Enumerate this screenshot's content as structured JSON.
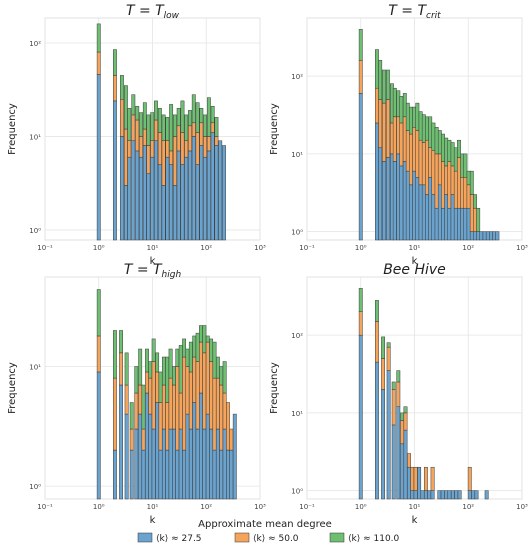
{
  "legend": {
    "title": "Approximate mean  degree",
    "items": [
      {
        "label": "⟨k⟩ ≈ 27.5",
        "color": "#6ba3cf"
      },
      {
        "label": "⟨k⟩ ≈ 50.0",
        "color": "#f5a45c"
      },
      {
        "label": "⟨k⟩ ≈ 110.0",
        "color": "#6fbf73"
      }
    ]
  },
  "chart_data": [
    {
      "type": "bar",
      "stacked": true,
      "title": "T = T_low",
      "xlabel": "k",
      "ylabel": "Frequency",
      "x_scale": "log",
      "y_scale": "log",
      "xlim": [
        0.1,
        1000
      ],
      "ylim": [
        0.78,
        185
      ],
      "x_ticks": [
        "10⁻¹",
        "10⁰",
        "10¹",
        "10²",
        "10³"
      ],
      "y_ticks": [
        "10⁰",
        "10¹",
        "10²"
      ],
      "grid": true,
      "series_names": [
        "⟨k⟩ ≈ 27.5",
        "⟨k⟩ ≈ 50.0",
        "⟨k⟩ ≈ 110.0"
      ],
      "bins": [
        {
          "k": 1.0,
          "totals": [
            46,
            80,
            160
          ]
        },
        {
          "k": 2.0,
          "totals": [
            24,
            45,
            85
          ]
        },
        {
          "k": 2.7,
          "totals": [
            10,
            25,
            45
          ]
        },
        {
          "k": 3.2,
          "totals": [
            3,
            12,
            35
          ]
        },
        {
          "k": 3.7,
          "totals": [
            6,
            9,
            20
          ]
        },
        {
          "k": 4.4,
          "totals": [
            9,
            17,
            28
          ]
        },
        {
          "k": 5.2,
          "totals": [
            7,
            15,
            21
          ]
        },
        {
          "k": 6.1,
          "totals": [
            6,
            10,
            18
          ]
        },
        {
          "k": 7.2,
          "totals": [
            8,
            12,
            23
          ]
        },
        {
          "k": 8.4,
          "totals": [
            4,
            8,
            17
          ]
        },
        {
          "k": 9.9,
          "totals": [
            6,
            9,
            18
          ]
        },
        {
          "k": 11.6,
          "totals": [
            9,
            15,
            24
          ]
        },
        {
          "k": 13.7,
          "totals": [
            5,
            11,
            20
          ]
        },
        {
          "k": 16.1,
          "totals": [
            3,
            9,
            17
          ]
        },
        {
          "k": 18.9,
          "totals": [
            6,
            9,
            16
          ]
        },
        {
          "k": 22.2,
          "totals": [
            5,
            7,
            22
          ]
        },
        {
          "k": 26.1,
          "totals": [
            3,
            10,
            17
          ]
        },
        {
          "k": 30.7,
          "totals": [
            7,
            13,
            20
          ]
        },
        {
          "k": 36.1,
          "totals": [
            5,
            11,
            24
          ]
        },
        {
          "k": 42.4,
          "totals": [
            6,
            9,
            17
          ]
        },
        {
          "k": 49.8,
          "totals": [
            7,
            13,
            19
          ]
        },
        {
          "k": 58.6,
          "totals": [
            10,
            14,
            28
          ]
        },
        {
          "k": 68.9,
          "totals": [
            5,
            11,
            23
          ]
        },
        {
          "k": 81.0,
          "totals": [
            8,
            14,
            20
          ]
        },
        {
          "k": 95.2,
          "totals": [
            6,
            10,
            17
          ]
        },
        {
          "k": 111.9,
          "totals": [
            7,
            10,
            26
          ]
        },
        {
          "k": 131.6,
          "totals": [
            11,
            14,
            21
          ]
        },
        {
          "k": 154.7,
          "totals": [
            8,
            10,
            16
          ]
        },
        {
          "k": 181.9,
          "totals": [
            9,
            9,
            9
          ]
        },
        {
          "k": 213.8,
          "totals": [
            8,
            8,
            8
          ]
        }
      ]
    },
    {
      "type": "bar",
      "stacked": true,
      "title": "T = T_crit",
      "xlabel": "k",
      "ylabel": "Frequency",
      "x_scale": "log",
      "y_scale": "log",
      "xlim": [
        0.1,
        1000
      ],
      "ylim": [
        0.78,
        560
      ],
      "x_ticks": [
        "10⁻¹",
        "10⁰",
        "10¹",
        "10²",
        "10³"
      ],
      "y_ticks": [
        "10⁰",
        "10¹",
        "10²"
      ],
      "grid": true,
      "series_names": [
        "⟨k⟩ ≈ 27.5",
        "⟨k⟩ ≈ 50.0",
        "⟨k⟩ ≈ 110.0"
      ],
      "bins": [
        {
          "k": 1.0,
          "totals": [
            60,
            160,
            400
          ]
        },
        {
          "k": 2.0,
          "totals": [
            25,
            70,
            220
          ]
        },
        {
          "k": 2.3,
          "totals": [
            12,
            50,
            160
          ]
        },
        {
          "k": 2.7,
          "totals": [
            8,
            45,
            120
          ]
        },
        {
          "k": 3.2,
          "totals": [
            9,
            50,
            120
          ]
        },
        {
          "k": 3.8,
          "totals": [
            10,
            25,
            80
          ]
        },
        {
          "k": 4.3,
          "totals": [
            8,
            30,
            70
          ]
        },
        {
          "k": 5.0,
          "totals": [
            10,
            30,
            65
          ]
        },
        {
          "k": 5.7,
          "totals": [
            7,
            25,
            55
          ]
        },
        {
          "k": 6.6,
          "totals": [
            8,
            30,
            60
          ]
        },
        {
          "k": 7.5,
          "totals": [
            6,
            20,
            45
          ]
        },
        {
          "k": 8.6,
          "totals": [
            4,
            18,
            40
          ]
        },
        {
          "k": 9.9,
          "totals": [
            6,
            22,
            40
          ]
        },
        {
          "k": 11.3,
          "totals": [
            5,
            20,
            45
          ]
        },
        {
          "k": 13.0,
          "totals": [
            4,
            15,
            35
          ]
        },
        {
          "k": 14.9,
          "totals": [
            4,
            14,
            32
          ]
        },
        {
          "k": 17.1,
          "totals": [
            3,
            15,
            30
          ]
        },
        {
          "k": 19.6,
          "totals": [
            5,
            12,
            30
          ]
        },
        {
          "k": 22.5,
          "totals": [
            3,
            11,
            25
          ]
        },
        {
          "k": 25.8,
          "totals": [
            2,
            10,
            22
          ]
        },
        {
          "k": 29.6,
          "totals": [
            4,
            10,
            20
          ]
        },
        {
          "k": 33.9,
          "totals": [
            2,
            8,
            18
          ]
        },
        {
          "k": 38.9,
          "totals": [
            3,
            7,
            16
          ]
        },
        {
          "k": 44.6,
          "totals": [
            2,
            8,
            15
          ]
        },
        {
          "k": 51.2,
          "totals": [
            3,
            7,
            14
          ]
        },
        {
          "k": 58.7,
          "totals": [
            2,
            6,
            12
          ]
        },
        {
          "k": 67.3,
          "totals": [
            2,
            9,
            15
          ]
        },
        {
          "k": 77.2,
          "totals": [
            2,
            5,
            10
          ]
        },
        {
          "k": 88.5,
          "totals": [
            2,
            5,
            10
          ]
        },
        {
          "k": 101.5,
          "totals": [
            2,
            4,
            6
          ]
        },
        {
          "k": 116.4,
          "totals": [
            1,
            3,
            6
          ]
        },
        {
          "k": 133.5,
          "totals": [
            1,
            2,
            3
          ]
        },
        {
          "k": 153.1,
          "totals": [
            1,
            1,
            2
          ]
        },
        {
          "k": 175.6,
          "totals": [
            1,
            1,
            1
          ]
        },
        {
          "k": 201.4,
          "totals": [
            1,
            1,
            1
          ]
        },
        {
          "k": 231.0,
          "totals": [
            1,
            1,
            1
          ]
        },
        {
          "k": 264.9,
          "totals": [
            1,
            1,
            1
          ]
        },
        {
          "k": 303.8,
          "totals": [
            1,
            1,
            1
          ]
        },
        {
          "k": 348.4,
          "totals": [
            1,
            1,
            1
          ]
        }
      ]
    },
    {
      "type": "bar",
      "stacked": true,
      "title": "T = T_high",
      "xlabel": "k",
      "ylabel": "Frequency",
      "x_scale": "log",
      "y_scale": "log",
      "xlim": [
        0.1,
        1000
      ],
      "ylim": [
        0.78,
        56
      ],
      "x_ticks": [
        "10⁻¹",
        "10⁰",
        "10¹",
        "10²",
        "10³"
      ],
      "y_ticks": [
        "10⁰",
        "10¹"
      ],
      "grid": true,
      "series_names": [
        "⟨k⟩ ≈ 27.5",
        "⟨k⟩ ≈ 50.0",
        "⟨k⟩ ≈ 110.0"
      ],
      "bins": [
        {
          "k": 1.0,
          "totals": [
            9,
            18,
            44
          ]
        },
        {
          "k": 2.0,
          "totals": [
            2,
            8,
            20
          ]
        },
        {
          "k": 2.6,
          "totals": [
            7,
            13,
            20
          ]
        },
        {
          "k": 3.3,
          "totals": [
            4,
            7,
            13
          ]
        },
        {
          "k": 4.1,
          "totals": [
            2,
            3,
            5
          ]
        },
        {
          "k": 5.0,
          "totals": [
            3,
            6,
            10
          ]
        },
        {
          "k": 5.9,
          "totals": [
            4,
            7,
            14
          ]
        },
        {
          "k": 6.8,
          "totals": [
            2,
            3,
            7
          ]
        },
        {
          "k": 7.9,
          "totals": [
            6,
            9,
            14
          ]
        },
        {
          "k": 9.1,
          "totals": [
            4,
            8,
            11
          ]
        },
        {
          "k": 10.5,
          "totals": [
            3,
            11,
            17
          ]
        },
        {
          "k": 12.2,
          "totals": [
            5,
            9,
            13
          ]
        },
        {
          "k": 14.1,
          "totals": [
            2,
            5,
            9
          ]
        },
        {
          "k": 16.3,
          "totals": [
            3,
            7,
            12
          ]
        },
        {
          "k": 18.8,
          "totals": [
            2,
            5,
            12
          ]
        },
        {
          "k": 21.7,
          "totals": [
            3,
            8,
            14
          ]
        },
        {
          "k": 25.1,
          "totals": [
            3,
            7,
            10
          ]
        },
        {
          "k": 29.0,
          "totals": [
            2,
            10,
            14
          ]
        },
        {
          "k": 33.5,
          "totals": [
            3,
            6,
            15
          ]
        },
        {
          "k": 38.7,
          "totals": [
            2,
            12,
            17
          ]
        },
        {
          "k": 44.7,
          "totals": [
            4,
            10,
            14
          ]
        },
        {
          "k": 51.7,
          "totals": [
            3,
            9,
            16
          ]
        },
        {
          "k": 59.8,
          "totals": [
            5,
            12,
            18
          ]
        },
        {
          "k": 69.1,
          "totals": [
            3,
            11,
            19
          ]
        },
        {
          "k": 79.8,
          "totals": [
            6,
            16,
            22
          ]
        },
        {
          "k": 92.3,
          "totals": [
            3,
            13,
            22
          ]
        },
        {
          "k": 106.6,
          "totals": [
            4,
            16,
            18
          ]
        },
        {
          "k": 123.2,
          "totals": [
            3,
            11,
            17
          ]
        },
        {
          "k": 142.4,
          "totals": [
            2,
            8,
            16
          ]
        },
        {
          "k": 164.6,
          "totals": [
            3,
            8,
            12
          ]
        },
        {
          "k": 190.2,
          "totals": [
            2,
            7,
            10
          ]
        },
        {
          "k": 219.8,
          "totals": [
            3,
            6,
            11
          ]
        },
        {
          "k": 254.1,
          "totals": [
            2,
            5,
            5
          ]
        },
        {
          "k": 293.6,
          "totals": [
            2,
            3,
            3
          ]
        },
        {
          "k": 339.4,
          "totals": [
            4,
            4,
            4
          ]
        }
      ]
    },
    {
      "type": "bar",
      "stacked": true,
      "title": "Bee Hive",
      "xlabel": "k",
      "ylabel": "Frequency",
      "x_scale": "log",
      "y_scale": "log",
      "xlim": [
        0.1,
        1000
      ],
      "ylim": [
        0.78,
        560
      ],
      "x_ticks": [
        "10⁻¹",
        "10⁰",
        "10¹",
        "10²",
        "10³"
      ],
      "y_ticks": [
        "10⁰",
        "10¹",
        "10²"
      ],
      "grid": true,
      "series_names": [
        "⟨k⟩ ≈ 27.5",
        "⟨k⟩ ≈ 50.0",
        "⟨k⟩ ≈ 110.0"
      ],
      "bins": [
        {
          "k": 1.0,
          "totals": [
            100,
            200,
            400
          ]
        },
        {
          "k": 2.0,
          "totals": [
            45,
            150,
            280
          ]
        },
        {
          "k": 2.6,
          "totals": [
            20,
            50,
            95
          ]
        },
        {
          "k": 3.3,
          "totals": [
            35,
            70,
            80
          ]
        },
        {
          "k": 4.1,
          "totals": [
            7,
            20,
            25
          ]
        },
        {
          "k": 5.0,
          "totals": [
            12,
            25,
            35
          ]
        },
        {
          "k": 5.9,
          "totals": [
            4,
            8,
            10
          ]
        },
        {
          "k": 6.8,
          "totals": [
            6,
            10,
            12
          ]
        },
        {
          "k": 7.9,
          "totals": [
            2,
            3,
            3
          ]
        },
        {
          "k": 9.1,
          "totals": [
            1,
            2,
            2
          ]
        },
        {
          "k": 10.5,
          "totals": [
            1,
            2,
            2
          ]
        },
        {
          "k": 12.2,
          "totals": [
            2,
            2,
            2
          ]
        },
        {
          "k": 14.1,
          "totals": [
            1,
            1,
            1
          ]
        },
        {
          "k": 16.3,
          "totals": [
            1,
            2,
            2
          ]
        },
        {
          "k": 18.8,
          "totals": [
            1,
            1,
            1
          ]
        },
        {
          "k": 21.7,
          "totals": [
            1,
            2,
            2
          ]
        },
        {
          "k": 29.0,
          "totals": [
            1,
            1,
            1
          ]
        },
        {
          "k": 33.5,
          "totals": [
            1,
            1,
            1
          ]
        },
        {
          "k": 38.7,
          "totals": [
            1,
            1,
            1
          ]
        },
        {
          "k": 44.7,
          "totals": [
            1,
            1,
            1
          ]
        },
        {
          "k": 51.7,
          "totals": [
            1,
            1,
            1
          ]
        },
        {
          "k": 59.8,
          "totals": [
            1,
            1,
            1
          ]
        },
        {
          "k": 69.1,
          "totals": [
            1,
            1,
            1
          ]
        },
        {
          "k": 106.6,
          "totals": [
            1,
            2,
            2
          ]
        },
        {
          "k": 123.2,
          "totals": [
            1,
            1,
            1
          ]
        },
        {
          "k": 142.4,
          "totals": [
            1,
            1,
            1
          ]
        },
        {
          "k": 219.8,
          "totals": [
            1,
            1,
            1
          ]
        }
      ]
    }
  ]
}
